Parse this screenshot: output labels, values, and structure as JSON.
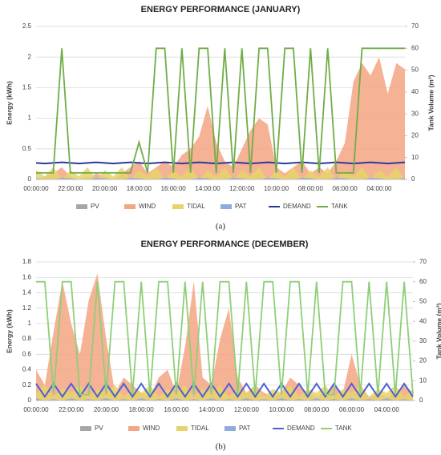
{
  "chart_data": [
    {
      "type": "area-line",
      "title": "ENERGY PERFORMANCE (JANUARY)",
      "y_label": "Energy (kWh)",
      "y2_label": "Tank Volume (m³)",
      "caption": "(a)",
      "categories": [
        "00:00:00",
        null,
        null,
        null,
        "22:00:00",
        null,
        null,
        null,
        "20:00:00",
        null,
        null,
        null,
        "18:00:00",
        null,
        null,
        null,
        "16:00:00",
        null,
        null,
        null,
        "14:00:00",
        null,
        null,
        null,
        "12:00:00",
        null,
        null,
        null,
        "10:00:00",
        null,
        null,
        null,
        "08:00:00",
        null,
        null,
        null,
        "06:00:00",
        null,
        null,
        null,
        "04:00:00",
        null,
        null,
        null
      ],
      "ylim": [
        0,
        2.5
      ],
      "yticks": [
        0,
        0.5,
        1,
        1.5,
        2,
        2.5
      ],
      "y2lim": [
        0,
        70
      ],
      "y2ticks": [
        0,
        10,
        20,
        30,
        40,
        50,
        60,
        70
      ],
      "grid": true,
      "series": [
        {
          "name": "PV",
          "color": "#a6a6a6",
          "kind": "area",
          "values": [
            0,
            0,
            0.05,
            0,
            0,
            0,
            0.05,
            0,
            0,
            0,
            0.05,
            0,
            0,
            0,
            0.05,
            0,
            0,
            0,
            0.05,
            0,
            0,
            0,
            0.05,
            0,
            0,
            0,
            0.05,
            0,
            0,
            0,
            0.05,
            0,
            0,
            0,
            0.05,
            0,
            0,
            0,
            0.05,
            0,
            0,
            0,
            0.05,
            0
          ]
        },
        {
          "name": "WIND",
          "color": "#f4a582",
          "kind": "area",
          "values": [
            0,
            0.05,
            0.1,
            0.2,
            0.05,
            0,
            0,
            0.1,
            0.05,
            0,
            0.1,
            0.2,
            0.3,
            0.1,
            0.2,
            0.3,
            0.2,
            0.4,
            0.5,
            0.7,
            1.2,
            0.6,
            0.3,
            0.2,
            0.5,
            0.8,
            1.0,
            0.9,
            0.2,
            0.1,
            0.2,
            0.3,
            0.1,
            0.2,
            0.1,
            0.3,
            0.6,
            1.6,
            1.9,
            1.7,
            2.0,
            1.4,
            1.9,
            1.8
          ]
        },
        {
          "name": "TIDAL",
          "color": "#e6d36a",
          "kind": "area",
          "values": [
            0.15,
            0.05,
            0.2,
            0,
            0.15,
            0.05,
            0.2,
            0,
            0.15,
            0.05,
            0.2,
            0,
            0.15,
            0.05,
            0.2,
            0,
            0.15,
            0.05,
            0.2,
            0,
            0.15,
            0.05,
            0.2,
            0,
            0.15,
            0.05,
            0.2,
            0,
            0.15,
            0.05,
            0.2,
            0,
            0.15,
            0.05,
            0.2,
            0,
            0.15,
            0.05,
            0.2,
            0,
            0.15,
            0.05,
            0.2,
            0
          ]
        },
        {
          "name": "PAT",
          "color": "#8faadc",
          "kind": "area",
          "values": [
            0.02,
            0,
            0,
            0.03,
            0.02,
            0,
            0,
            0.03,
            0.02,
            0,
            0,
            0.03,
            0.02,
            0,
            0,
            0.03,
            0.02,
            0,
            0,
            0.03,
            0.02,
            0,
            0,
            0.03,
            0.02,
            0,
            0,
            0.03,
            0.02,
            0,
            0,
            0.03,
            0.02,
            0,
            0,
            0.03,
            0.02,
            0,
            0,
            0.03,
            0.02,
            0,
            0,
            0.03
          ]
        },
        {
          "name": "DEMAND",
          "color": "#2e3a9a",
          "kind": "line",
          "values": [
            0.27,
            0.26,
            0.27,
            0.28,
            0.27,
            0.26,
            0.27,
            0.28,
            0.27,
            0.26,
            0.27,
            0.28,
            0.27,
            0.26,
            0.27,
            0.28,
            0.27,
            0.26,
            0.27,
            0.28,
            0.27,
            0.26,
            0.27,
            0.28,
            0.27,
            0.26,
            0.27,
            0.28,
            0.27,
            0.26,
            0.27,
            0.28,
            0.27,
            0.26,
            0.27,
            0.28,
            0.27,
            0.26,
            0.27,
            0.28,
            0.27,
            0.26,
            0.27,
            0.28
          ]
        },
        {
          "name": "TANK",
          "color": "#70ad47",
          "kind": "line",
          "axis": "y2",
          "values": [
            3,
            3,
            3,
            60,
            3,
            3,
            3,
            3,
            3,
            3,
            3,
            3,
            17,
            3,
            60,
            60,
            3,
            60,
            3,
            60,
            60,
            3,
            60,
            3,
            60,
            3,
            60,
            60,
            3,
            60,
            60,
            3,
            60,
            3,
            60,
            3,
            3,
            3,
            60,
            60,
            60,
            60,
            60,
            60
          ]
        }
      ]
    },
    {
      "type": "area-line",
      "title": "ENERGY PERFORMANCE (DECEMBER)",
      "y_label": "Energy (kWh)",
      "y2_label": "Tank Volume (m³)",
      "caption": "(b)",
      "categories": [
        "00:00:00",
        null,
        null,
        null,
        "22:00:00",
        null,
        null,
        null,
        "20:00:00",
        null,
        null,
        null,
        "18:00:00",
        null,
        null,
        null,
        "16:00:00",
        null,
        null,
        null,
        "14:00:00",
        null,
        null,
        null,
        "12:00:00",
        null,
        null,
        null,
        "10:00:00",
        null,
        null,
        null,
        "08:00:00",
        null,
        null,
        null,
        "06:00:00",
        null,
        null,
        null,
        "04:00:00",
        null,
        null,
        null
      ],
      "ylim": [
        0,
        1.8
      ],
      "yticks": [
        0,
        0.2,
        0.4,
        0.6,
        0.8,
        1,
        1.2,
        1.4,
        1.6,
        1.8
      ],
      "y2lim": [
        0,
        70
      ],
      "y2ticks": [
        0,
        10,
        20,
        30,
        40,
        50,
        60,
        70
      ],
      "grid": true,
      "series": [
        {
          "name": "PV",
          "color": "#a6a6a6",
          "kind": "area",
          "values": [
            0,
            0.03,
            0,
            0,
            0,
            0.03,
            0,
            0,
            0,
            0.03,
            0,
            0,
            0,
            0.03,
            0,
            0,
            0,
            0.03,
            0,
            0,
            0,
            0.03,
            0,
            0,
            0,
            0.03,
            0,
            0,
            0,
            0.03,
            0,
            0,
            0,
            0.03,
            0,
            0,
            0,
            0.03,
            0,
            0,
            0,
            0.03,
            0,
            0
          ]
        },
        {
          "name": "WIND",
          "color": "#f4a582",
          "kind": "area",
          "values": [
            0.4,
            0.2,
            0.9,
            1.55,
            1.0,
            0.6,
            1.3,
            1.65,
            0.8,
            0.1,
            0.3,
            0.2,
            0.1,
            0.05,
            0.3,
            0.4,
            0.1,
            0.7,
            1.55,
            0.3,
            0.2,
            0.8,
            1.2,
            0.3,
            0.1,
            0.2,
            0.1,
            0.05,
            0.1,
            0.3,
            0.2,
            0.1,
            0.05,
            0.1,
            0.2,
            0.1,
            0.6,
            0.2,
            0.05,
            0.1,
            0.05,
            0.1,
            0.2,
            0.1
          ]
        },
        {
          "name": "TIDAL",
          "color": "#e6d36a",
          "kind": "area",
          "values": [
            0.1,
            0.2,
            0.05,
            0.15,
            0.1,
            0.2,
            0.05,
            0.15,
            0.1,
            0.2,
            0.05,
            0.15,
            0.1,
            0.2,
            0.05,
            0.15,
            0.1,
            0.2,
            0.05,
            0.15,
            0.1,
            0.2,
            0.05,
            0.15,
            0.1,
            0.2,
            0.05,
            0.15,
            0.1,
            0.2,
            0.05,
            0.15,
            0.1,
            0.2,
            0.05,
            0.15,
            0.1,
            0.2,
            0.05,
            0.15,
            0.1,
            0.2,
            0.05,
            0.15
          ]
        },
        {
          "name": "PAT",
          "color": "#8faadc",
          "kind": "area",
          "values": [
            0.03,
            0,
            0.02,
            0,
            0.03,
            0,
            0.02,
            0,
            0.03,
            0,
            0.02,
            0,
            0.03,
            0,
            0.02,
            0,
            0.03,
            0,
            0.02,
            0,
            0.03,
            0,
            0.02,
            0,
            0.03,
            0,
            0.02,
            0,
            0.03,
            0,
            0.02,
            0,
            0.03,
            0,
            0.02,
            0,
            0.03,
            0,
            0.02,
            0,
            0.03,
            0,
            0.02,
            0
          ]
        },
        {
          "name": "DEMAND",
          "color": "#4a63d0",
          "kind": "line",
          "values": [
            0.22,
            0.05,
            0.22,
            0.05,
            0.22,
            0.05,
            0.22,
            0.05,
            0.22,
            0.05,
            0.22,
            0.05,
            0.22,
            0.05,
            0.22,
            0.05,
            0.22,
            0.05,
            0.22,
            0.05,
            0.22,
            0.05,
            0.22,
            0.05,
            0.22,
            0.05,
            0.22,
            0.05,
            0.22,
            0.05,
            0.22,
            0.05,
            0.22,
            0.05,
            0.22,
            0.05,
            0.22,
            0.05,
            0.22,
            0.05,
            0.22,
            0.05,
            0.22,
            0.05
          ]
        },
        {
          "name": "TANK",
          "color": "#8fcf78",
          "kind": "line",
          "axis": "y2",
          "values": [
            60,
            60,
            3,
            60,
            60,
            3,
            3,
            60,
            3,
            60,
            60,
            3,
            60,
            3,
            60,
            60,
            3,
            60,
            3,
            60,
            3,
            60,
            60,
            3,
            60,
            3,
            60,
            60,
            3,
            60,
            60,
            3,
            60,
            3,
            3,
            60,
            60,
            3,
            60,
            3,
            60,
            3,
            60,
            3
          ]
        }
      ]
    }
  ]
}
